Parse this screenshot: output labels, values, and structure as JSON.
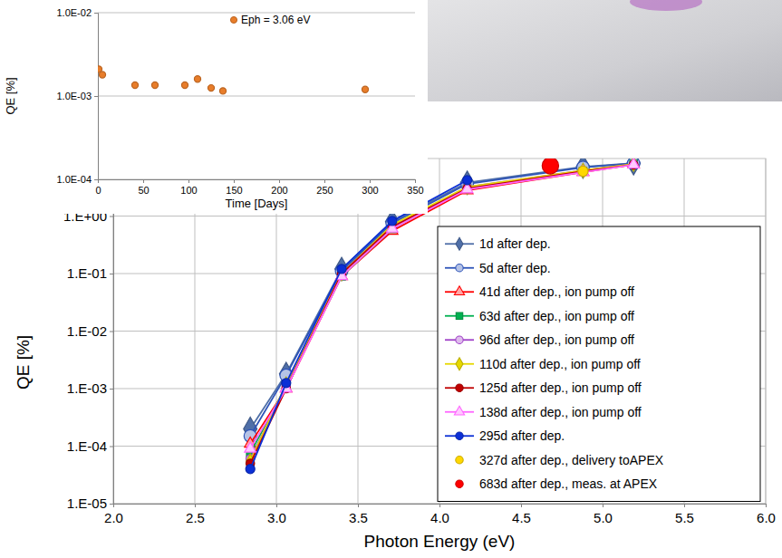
{
  "chart_data": [
    {
      "type": "line",
      "x_label": "Photon Energy (eV)",
      "y_label": "QE [%]",
      "log": "y",
      "grid": true,
      "legend": "lower right",
      "xlim": [
        2,
        6
      ],
      "xticks": [
        {
          "value": 2,
          "label": "2.0"
        },
        2.5,
        {
          "value": 3,
          "label": "3.0"
        },
        3.5,
        {
          "value": 4,
          "label": "4.0"
        },
        4.5,
        {
          "value": 5,
          "label": "5.0"
        },
        5.5,
        {
          "value": 6,
          "label": "6.0"
        }
      ],
      "ylim": [
        1e-05,
        10
      ],
      "yticks": [
        {
          "value": 1e-05,
          "label": "1.E-05"
        },
        {
          "value": 0.0001,
          "label": "1.E-04"
        },
        {
          "value": 0.001,
          "label": "1.E-03"
        },
        {
          "value": 0.01,
          "label": "1.E-02"
        },
        {
          "value": 0.1,
          "label": "1.E-01"
        },
        {
          "value": 1,
          "label": "1.E+00"
        }
      ],
      "series": [
        {
          "name": "1d after dep.",
          "color": "#4f6fa8",
          "marker": "diamond",
          "x": [
            2.84,
            3.06,
            3.4,
            3.71,
            4.17,
            4.88,
            5.19
          ],
          "values": [
            0.0002,
            0.0018,
            0.12,
            0.8,
            3.8,
            7.2,
            8.3
          ]
        },
        {
          "name": "5d after dep.",
          "color": "#2e54b8",
          "marker": "circle-open",
          "x": [
            2.84,
            3.06,
            3.4,
            3.71,
            4.17,
            4.88,
            5.19
          ],
          "values": [
            0.00015,
            0.0017,
            0.11,
            0.75,
            3.6,
            7.0,
            8.2
          ]
        },
        {
          "name": "41d after dep., ion pump off",
          "color": "#ff0000",
          "marker": "triangle-open",
          "x": [
            2.84,
            3.06,
            3.4,
            3.71,
            4.17,
            4.88,
            5.19
          ],
          "values": [
            0.00011,
            0.001,
            0.09,
            0.55,
            2.8,
            5.8,
            7.9
          ]
        },
        {
          "name": "63d after dep., ion pump off",
          "color": "#00b050",
          "marker": "square",
          "x": [
            2.84,
            3.06,
            3.4,
            3.71,
            4.17,
            4.88,
            5.19
          ],
          "values": [
            7.5e-05,
            0.0011,
            0.09,
            0.6,
            3.0,
            6.0,
            8.0
          ]
        },
        {
          "name": "96d after dep., ion pump off",
          "color": "#a040c8",
          "marker": "circle-open",
          "x": [
            2.84,
            3.06,
            3.4,
            3.71,
            4.17,
            4.88,
            5.19
          ],
          "values": [
            6e-05,
            0.0011,
            0.1,
            0.65,
            3.2,
            6.2,
            8.0
          ]
        },
        {
          "name": "110d after dep., ion pump off",
          "color": "#e6d800",
          "marker": "diamond",
          "x": [
            2.84,
            3.06,
            3.4,
            3.71,
            4.17,
            4.88,
            5.19
          ],
          "values": [
            5.5e-05,
            0.0012,
            0.1,
            0.7,
            3.2,
            6.2,
            8.0
          ]
        },
        {
          "name": "125d after dep., ion pump off",
          "color": "#c00000",
          "marker": "circle",
          "x": [
            2.84,
            3.06,
            3.4,
            3.71,
            4.17,
            4.88,
            5.19
          ],
          "values": [
            5e-05,
            0.001,
            0.1,
            0.65,
            3.0,
            6.0,
            7.8
          ]
        },
        {
          "name": "138d after dep., ion pump off",
          "color": "#ff66ff",
          "marker": "triangle-open",
          "x": [
            2.84,
            3.06,
            3.4,
            3.71,
            4.17,
            4.88,
            5.19
          ],
          "values": [
            9e-05,
            0.001,
            0.09,
            0.6,
            2.9,
            5.8,
            7.8
          ]
        },
        {
          "name": "295d after dep.",
          "color": "#0b2fd6",
          "marker": "circle",
          "x": [
            2.84,
            3.06,
            3.4,
            3.71,
            4.17
          ],
          "values": [
            4e-05,
            0.00125,
            0.12,
            0.82,
            4.2
          ]
        },
        {
          "name": "327d after dep., delivery toAPEX",
          "color": "#ffd700",
          "marker": "circle",
          "line_style": "none",
          "x": [
            4.88
          ],
          "values": [
            6.0
          ]
        },
        {
          "name": "683d after dep., meas. at APEX",
          "color": "#ff0000",
          "marker": "circle",
          "line_style": "none",
          "x": [
            4.68
          ],
          "values": [
            7.5
          ]
        }
      ]
    },
    {
      "type": "scatter",
      "x_label": "Time [Days]",
      "y_label": "QE [%]",
      "log": "y",
      "grid": true,
      "legend": "top",
      "xlim": [
        0,
        350
      ],
      "xticks": [
        0,
        50,
        100,
        150,
        200,
        250,
        300,
        350
      ],
      "ylim": [
        0.0001,
        0.01
      ],
      "yticks": [
        {
          "value": 0.0001,
          "label": "1.0E-04"
        },
        {
          "value": 0.001,
          "label": "1.0E-03"
        },
        {
          "value": 0.01,
          "label": "1.0E-02"
        }
      ],
      "series": [
        {
          "name": "Eph = 3.06 eV",
          "color": "#e87d2a",
          "marker": "circle",
          "x": [
            1,
            5,
            41,
            63,
            96,
            110,
            125,
            138,
            295
          ],
          "values": [
            0.0021,
            0.0018,
            0.00135,
            0.00135,
            0.00135,
            0.0016,
            0.00125,
            0.00115,
            0.0012
          ]
        }
      ]
    }
  ]
}
